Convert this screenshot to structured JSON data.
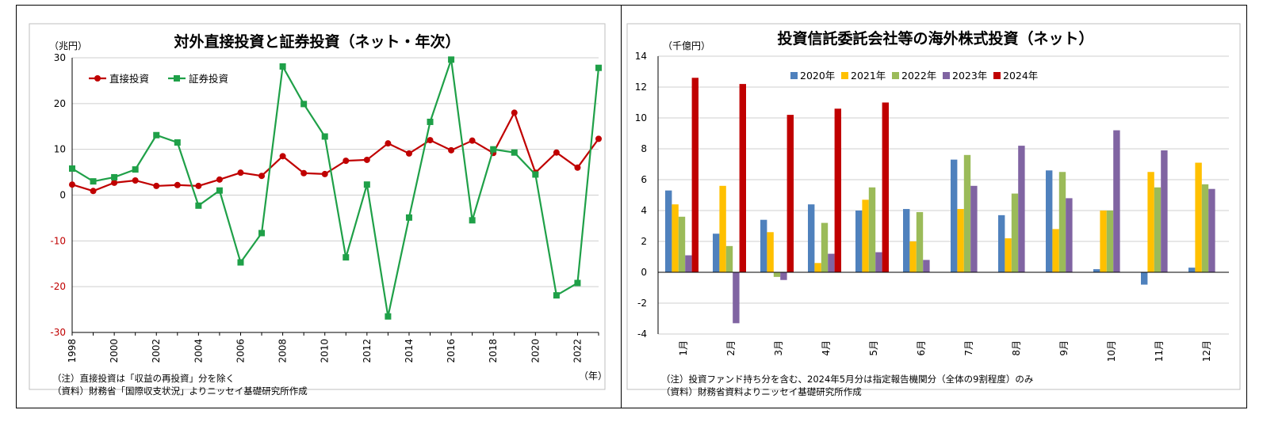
{
  "chart_data": [
    {
      "type": "line",
      "title": "対外直接投資と証券投資（ネット・年次）",
      "ylabel": "（兆円）",
      "xlabel": "（年）",
      "ylim": [
        -30,
        30
      ],
      "y_ticks": [
        "30",
        "20",
        "10",
        "0",
        "-10",
        "-20",
        "-30"
      ],
      "x_ticks": [
        "1998",
        "2000",
        "2002",
        "2004",
        "2006",
        "2008",
        "2010",
        "2012",
        "2014",
        "2016",
        "2018",
        "2020",
        "2022"
      ],
      "x": [
        1998,
        1999,
        2000,
        2001,
        2002,
        2003,
        2004,
        2005,
        2006,
        2007,
        2008,
        2009,
        2010,
        2011,
        2012,
        2013,
        2014,
        2015,
        2016,
        2017,
        2018,
        2019,
        2020,
        2021,
        2022,
        2023
      ],
      "grid": true,
      "legend_position": "top-left",
      "series": [
        {
          "name": "直接投資",
          "color": "#c00000",
          "marker": "circle",
          "values": [
            2.3,
            0.9,
            2.7,
            3.2,
            2.0,
            2.2,
            2.0,
            3.4,
            4.9,
            4.2,
            8.5,
            4.8,
            4.6,
            7.5,
            7.7,
            11.3,
            9.1,
            12.0,
            9.8,
            11.9,
            9.2,
            18.0,
            4.9,
            9.3,
            6.0,
            12.3
          ]
        },
        {
          "name": "証券投資",
          "color": "#1fa048",
          "marker": "square",
          "values": [
            5.8,
            3.0,
            3.9,
            5.6,
            13.1,
            11.5,
            -2.3,
            1.0,
            -14.7,
            -8.3,
            28.1,
            19.9,
            12.8,
            -13.6,
            2.3,
            -26.5,
            -4.9,
            16.0,
            29.6,
            -5.5,
            10.0,
            9.3,
            4.5,
            -21.9,
            -19.2,
            27.8
          ]
        }
      ],
      "notes": [
        "（注）直接投資は「収益の再投資」分を除く",
        "（資料）財務省「国際収支状況」よりニッセイ基礎研究所作成"
      ]
    },
    {
      "type": "bar",
      "title": "投資信託委託会社等の海外株式投資（ネット）",
      "ylabel": "（千億円）",
      "ylim": [
        -4,
        14
      ],
      "y_ticks": [
        "14",
        "12",
        "10",
        "8",
        "6",
        "4",
        "2",
        "0",
        "-2",
        "-4"
      ],
      "categories": [
        "1月",
        "2月",
        "3月",
        "4月",
        "5月",
        "6月",
        "7月",
        "8月",
        "9月",
        "10月",
        "11月",
        "12月"
      ],
      "grid": true,
      "legend_position": "top-center",
      "series": [
        {
          "name": "2020年",
          "color": "#4f81bd",
          "values": [
            5.3,
            2.5,
            3.4,
            4.4,
            4.0,
            4.1,
            7.3,
            3.7,
            6.6,
            0.2,
            -0.8,
            0.3
          ]
        },
        {
          "name": "2021年",
          "color": "#ffc000",
          "values": [
            4.4,
            5.6,
            2.6,
            0.6,
            4.7,
            2.0,
            4.1,
            2.2,
            2.8,
            4.0,
            6.5,
            7.1
          ]
        },
        {
          "name": "2022年",
          "color": "#9bbb59",
          "values": [
            3.6,
            1.7,
            -0.3,
            3.2,
            5.5,
            3.9,
            7.6,
            5.1,
            6.5,
            4.0,
            5.5,
            5.7
          ]
        },
        {
          "name": "2023年",
          "color": "#8064a2",
          "values": [
            1.1,
            -3.3,
            -0.5,
            1.2,
            1.3,
            0.8,
            5.6,
            8.2,
            4.8,
            9.2,
            7.9,
            5.4
          ]
        },
        {
          "name": "2024年",
          "color": "#c00000",
          "values": [
            12.6,
            12.2,
            10.2,
            10.6,
            11.0,
            null,
            null,
            null,
            null,
            null,
            null,
            null
          ]
        }
      ],
      "notes": [
        "（注）投資ファンド持ち分を含む、2024年5月分は指定報告機関分（全体の9割程度）のみ",
        "（資料）財務省資料よりニッセイ基礎研究所作成"
      ]
    }
  ]
}
